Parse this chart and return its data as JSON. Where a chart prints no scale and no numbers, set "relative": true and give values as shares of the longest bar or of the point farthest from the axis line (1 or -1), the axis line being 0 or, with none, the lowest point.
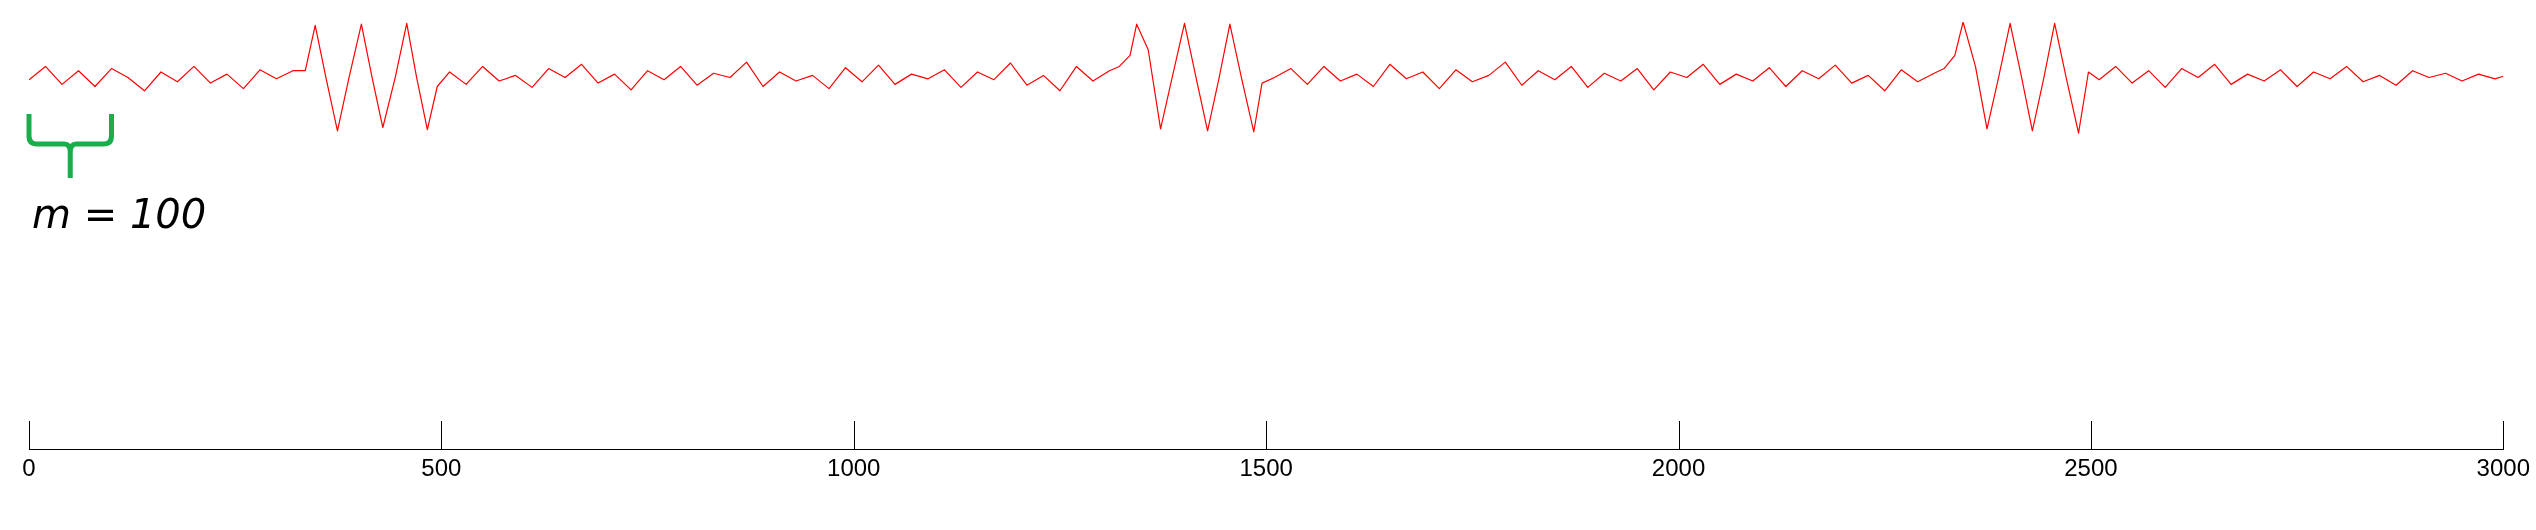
{
  "chart_data": {
    "type": "line",
    "relative": true,
    "marker": "none",
    "x": [
      0,
      20,
      40,
      60,
      80,
      100,
      120,
      140,
      160,
      180,
      200,
      220,
      240,
      260,
      280,
      300,
      320,
      335,
      347,
      360,
      374,
      388,
      403,
      416,
      429,
      444,
      458,
      470,
      483,
      495,
      510,
      530,
      550,
      570,
      590,
      610,
      630,
      650,
      670,
      690,
      710,
      730,
      750,
      770,
      790,
      810,
      830,
      850,
      870,
      890,
      910,
      930,
      950,
      970,
      990,
      1010,
      1030,
      1050,
      1070,
      1090,
      1110,
      1130,
      1150,
      1170,
      1190,
      1210,
      1230,
      1250,
      1270,
      1290,
      1310,
      1322,
      1335,
      1343,
      1357,
      1372,
      1386,
      1401,
      1415,
      1429,
      1443,
      1456,
      1470,
      1485,
      1495,
      1510,
      1530,
      1550,
      1570,
      1590,
      1610,
      1630,
      1650,
      1670,
      1690,
      1710,
      1730,
      1750,
      1770,
      1790,
      1810,
      1830,
      1850,
      1870,
      1890,
      1910,
      1930,
      1950,
      1970,
      1990,
      2010,
      2030,
      2050,
      2070,
      2090,
      2110,
      2130,
      2150,
      2170,
      2190,
      2210,
      2230,
      2250,
      2270,
      2290,
      2310,
      2322,
      2335,
      2345,
      2360,
      2374,
      2388,
      2402,
      2416,
      2429,
      2443,
      2456,
      2470,
      2485,
      2497,
      2510,
      2530,
      2550,
      2570,
      2590,
      2610,
      2630,
      2650,
      2670,
      2690,
      2710,
      2730,
      2750,
      2770,
      2790,
      2810,
      2830,
      2850,
      2870,
      2890,
      2910,
      2930,
      2950,
      2970,
      2990,
      3000
    ],
    "series": [
      {
        "color": "#ff0000",
        "values": [
          0.865,
          0.896,
          0.854,
          0.886,
          0.849,
          0.891,
          0.87,
          0.839,
          0.883,
          0.86,
          0.896,
          0.857,
          0.878,
          0.844,
          0.888,
          0.867,
          0.886,
          0.886,
          0.992,
          0.87,
          0.745,
          0.87,
          0.995,
          0.87,
          0.753,
          0.87,
          0.997,
          0.87,
          0.748,
          0.849,
          0.883,
          0.854,
          0.896,
          0.862,
          0.875,
          0.847,
          0.891,
          0.87,
          0.901,
          0.857,
          0.878,
          0.841,
          0.886,
          0.865,
          0.896,
          0.852,
          0.88,
          0.87,
          0.906,
          0.849,
          0.883,
          0.862,
          0.875,
          0.844,
          0.893,
          0.86,
          0.899,
          0.854,
          0.878,
          0.867,
          0.888,
          0.847,
          0.883,
          0.865,
          0.904,
          0.852,
          0.875,
          0.839,
          0.896,
          0.862,
          0.886,
          0.896,
          0.922,
          0.995,
          0.935,
          0.75,
          0.87,
          0.997,
          0.87,
          0.745,
          0.87,
          0.995,
          0.87,
          0.743,
          0.857,
          0.87,
          0.891,
          0.854,
          0.896,
          0.862,
          0.878,
          0.849,
          0.901,
          0.867,
          0.883,
          0.844,
          0.888,
          0.86,
          0.875,
          0.906,
          0.852,
          0.886,
          0.865,
          0.896,
          0.847,
          0.88,
          0.862,
          0.891,
          0.841,
          0.883,
          0.87,
          0.901,
          0.854,
          0.878,
          0.862,
          0.893,
          0.849,
          0.886,
          0.867,
          0.899,
          0.857,
          0.875,
          0.839,
          0.888,
          0.86,
          0.88,
          0.891,
          0.922,
          1,
          0.896,
          0.75,
          0.87,
          0.997,
          0.87,
          0.745,
          0.87,
          0.997,
          0.87,
          0.74,
          0.883,
          0.865,
          0.896,
          0.857,
          0.886,
          0.847,
          0.891,
          0.87,
          0.901,
          0.854,
          0.878,
          0.862,
          0.888,
          0.849,
          0.883,
          0.867,
          0.896,
          0.86,
          0.875,
          0.852,
          0.886,
          0.87,
          0.88,
          0.862,
          0.878,
          0.867,
          0.873
        ]
      }
    ],
    "xlim": [
      0,
      3000
    ],
    "xticks": [
      0,
      500,
      1000,
      1500,
      2000,
      2500,
      3000
    ],
    "annotations": [
      "m = 100"
    ]
  }
}
